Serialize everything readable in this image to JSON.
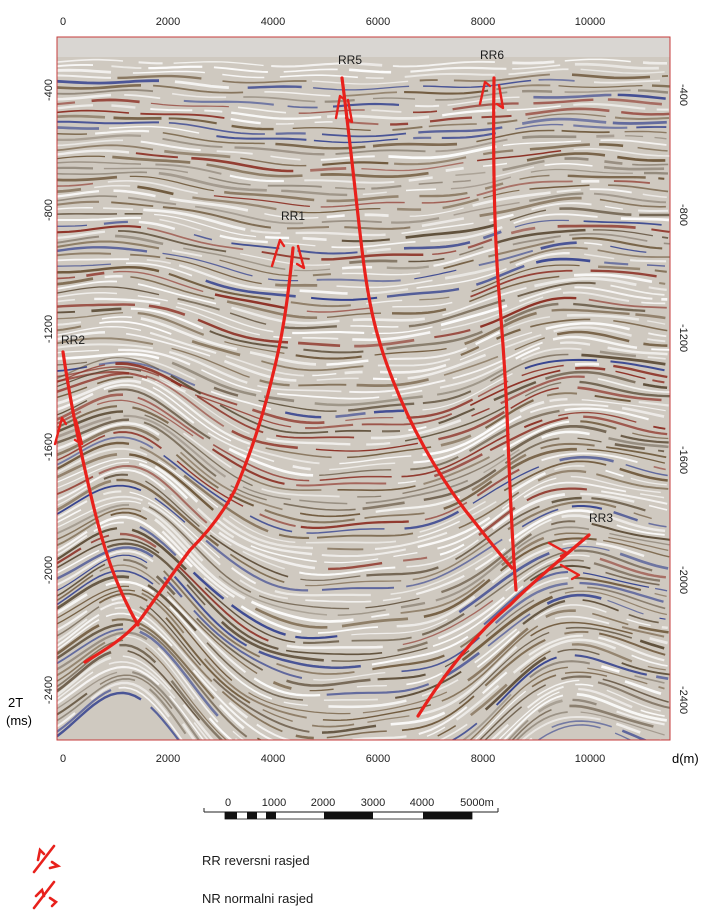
{
  "axes": {
    "x_ticks": [
      "0",
      "2000",
      "4000",
      "6000",
      "8000",
      "10000"
    ],
    "y_ticks_left": [
      "-400",
      "-800",
      "-1200",
      "-1600",
      "-2000",
      "-2400"
    ],
    "y_ticks_right": [
      "-400",
      "-800",
      "-1200",
      "-1600",
      "-2000",
      "-2400"
    ],
    "x_unit_label": "d(m)",
    "y_label_line1": "2T",
    "y_label_line2": "(ms)"
  },
  "faults": [
    {
      "id": "RR5",
      "label": "RR5"
    },
    {
      "id": "RR6",
      "label": "RR6"
    },
    {
      "id": "RR1",
      "label": "RR1"
    },
    {
      "id": "RR2",
      "label": "RR2"
    },
    {
      "id": "RR3",
      "label": "RR3"
    }
  ],
  "scale_bar": {
    "labels": [
      "0",
      "1000",
      "2000",
      "3000",
      "4000",
      "5000m"
    ]
  },
  "legend": {
    "reverse": "RR reversni rasjed",
    "normal": "NR normalni rasjed"
  },
  "colors": {
    "fault": "#e8211c",
    "frame": "#c63b3b",
    "reflector_brown": "#6b5436",
    "reflector_blue": "#2b3a8c",
    "reflector_red": "#8a2a1e"
  }
}
